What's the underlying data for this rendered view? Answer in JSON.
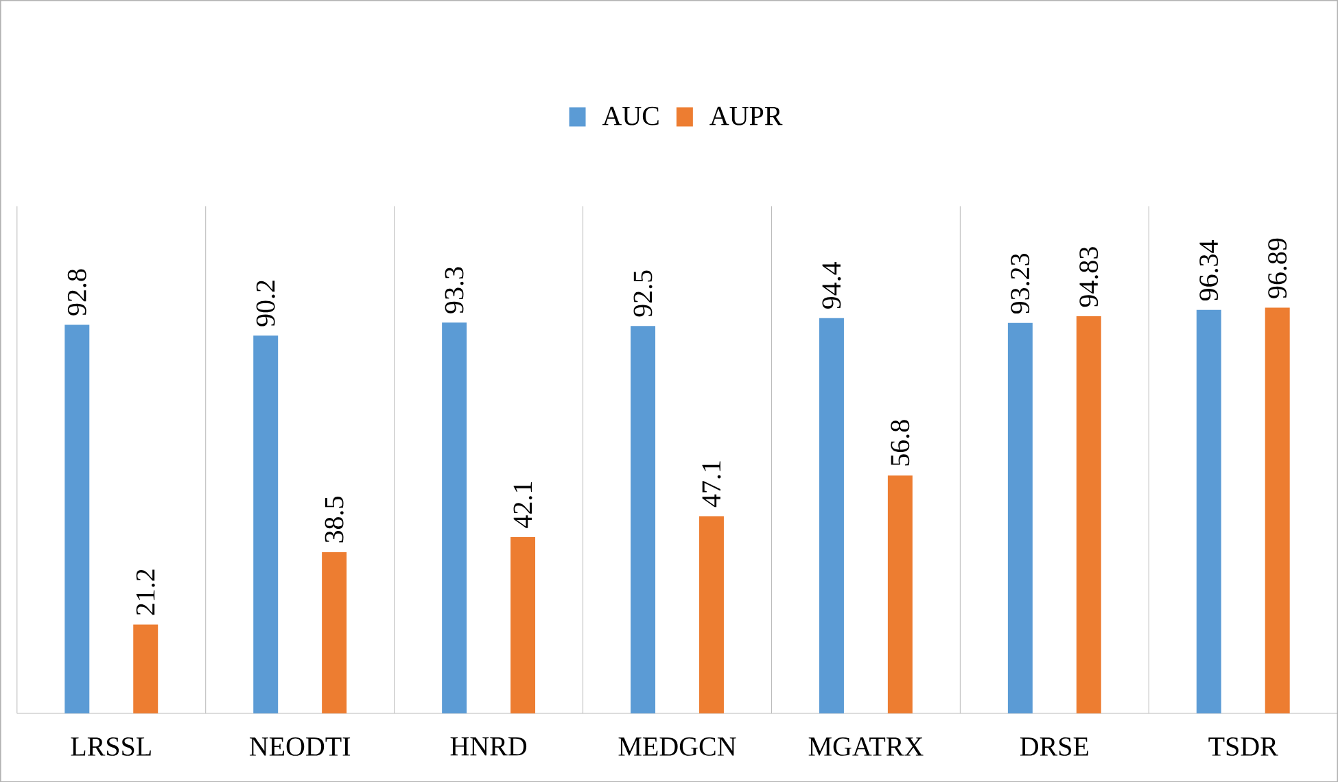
{
  "chart_data": {
    "type": "bar",
    "categories": [
      "LRSSL",
      "NEODTI",
      "HNRD",
      "MEDGCN",
      "MGATRX",
      "DRSE",
      "TSDR"
    ],
    "series": [
      {
        "name": "AUC",
        "color": "#5b9bd5",
        "values": [
          92.8,
          90.2,
          93.3,
          92.5,
          94.4,
          93.23,
          96.34
        ]
      },
      {
        "name": "AUPR",
        "color": "#ed7d31",
        "values": [
          21.2,
          38.5,
          42.1,
          47.1,
          56.8,
          94.83,
          96.89
        ]
      }
    ],
    "data_labels": true,
    "grid": "x",
    "legend": "top",
    "tick_labels": "x"
  }
}
